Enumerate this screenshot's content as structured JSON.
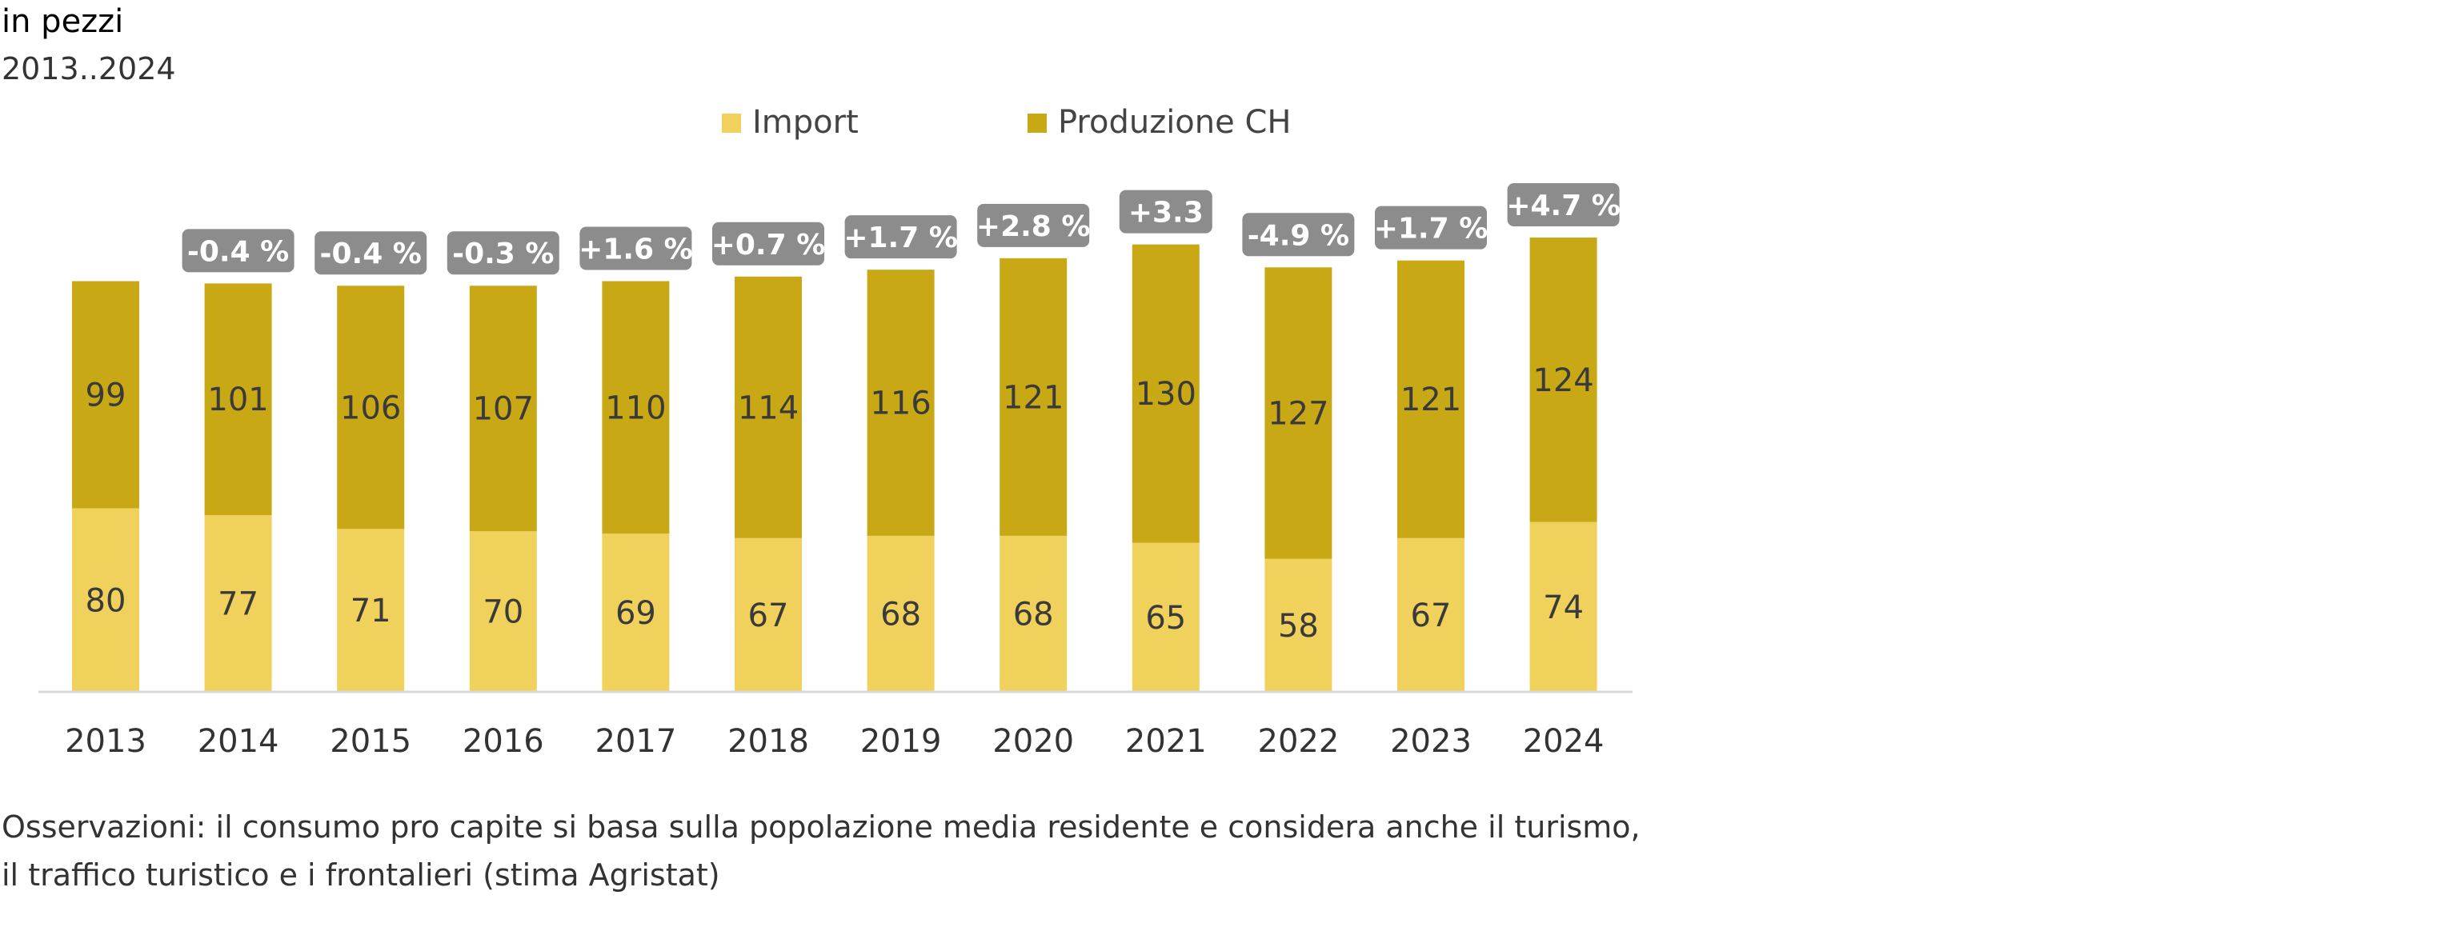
{
  "header": {
    "title": "in pezzi",
    "subtitle": "2013..2024"
  },
  "footer": {
    "note": "Osservazioni: il consumo pro capite si basa sulla popolazione media residente e considera anche il turismo, il traffico turistico e i frontalieri (stima Agristat)"
  },
  "chart_data": {
    "type": "bar",
    "stacked": true,
    "categories": [
      "2013",
      "2014",
      "2015",
      "2016",
      "2017",
      "2018",
      "2019",
      "2020",
      "2021",
      "2022",
      "2023",
      "2024"
    ],
    "series": [
      {
        "name": "Import",
        "color": "#EFD15B",
        "values": [
          80,
          77,
          71,
          70,
          69,
          67,
          68,
          68,
          65,
          58,
          67,
          74
        ]
      },
      {
        "name": "Produzione CH",
        "color": "#C9A816",
        "values": [
          99,
          101,
          106,
          107,
          110,
          114,
          116,
          121,
          130,
          127,
          121,
          124
        ]
      }
    ],
    "change_labels": [
      "",
      "-0.4 %",
      "-0.4 %",
      "-0.3 %",
      "+1.6 %",
      "+0.7 %",
      "+1.7 %",
      "+2.8 %",
      "+3.3",
      "-4.9 %",
      "+1.7 %",
      "+4.7 %"
    ],
    "change_label_color": "#8C8C8C",
    "ylim": [
      0,
      200
    ],
    "grid": false,
    "legend": "top-center"
  }
}
